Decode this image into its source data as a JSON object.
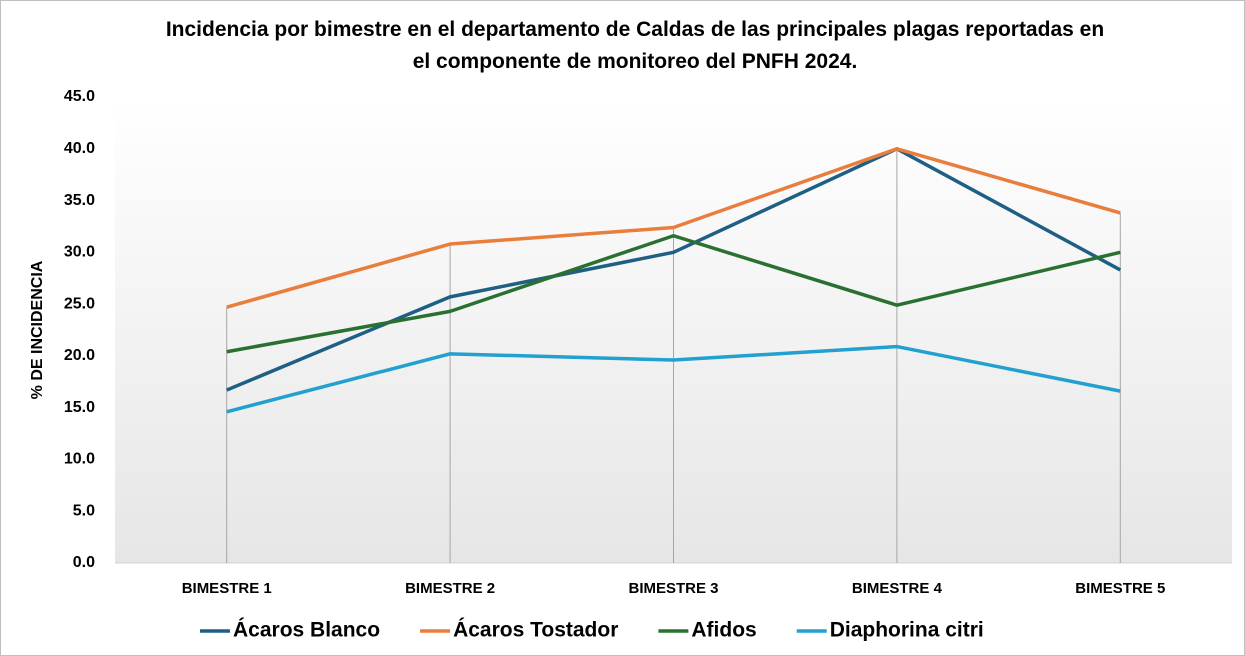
{
  "chart_data": {
    "type": "line",
    "title": "Incidencia por bimestre en el departamento de Caldas de las principales plagas reportadas en el componente de monitoreo del PNFH 2024.",
    "y_label": "% DE INCIDENCIA",
    "categories": [
      "BIMESTRE 1",
      "BIMESTRE 2",
      "BIMESTRE 3",
      "BIMESTRE 4",
      "BIMESTRE 5"
    ],
    "series": [
      {
        "name": "Ácaros Blanco",
        "color": "#1f5f85",
        "values": [
          16.7,
          25.7,
          30.0,
          40.0,
          28.3
        ]
      },
      {
        "name": "Ácaros Tostador",
        "color": "#e97d3c",
        "values": [
          24.7,
          30.8,
          32.4,
          40.0,
          33.8
        ]
      },
      {
        "name": "Afidos",
        "color": "#2a7030",
        "values": [
          20.4,
          24.3,
          31.6,
          24.9,
          30.0
        ]
      },
      {
        "name": "Diaphorina citri",
        "color": "#22a0d0",
        "values": [
          14.6,
          20.2,
          19.6,
          20.9,
          16.6
        ]
      }
    ],
    "ylim": [
      0,
      45
    ],
    "yticks": [
      {
        "value": 0,
        "label": "0.0"
      },
      {
        "value": 5,
        "label": "5.0"
      },
      {
        "value": 10,
        "label": "10.0"
      },
      {
        "value": 15,
        "label": "15.0"
      },
      {
        "value": 20,
        "label": "20.0"
      },
      {
        "value": 25,
        "label": "25.0"
      },
      {
        "value": 30,
        "label": "30.0"
      },
      {
        "value": 35,
        "label": "35.0"
      },
      {
        "value": 40,
        "label": "40.0"
      },
      {
        "value": 45,
        "label": "45.0"
      }
    ],
    "drop_lines": true,
    "legend": "bottom"
  }
}
